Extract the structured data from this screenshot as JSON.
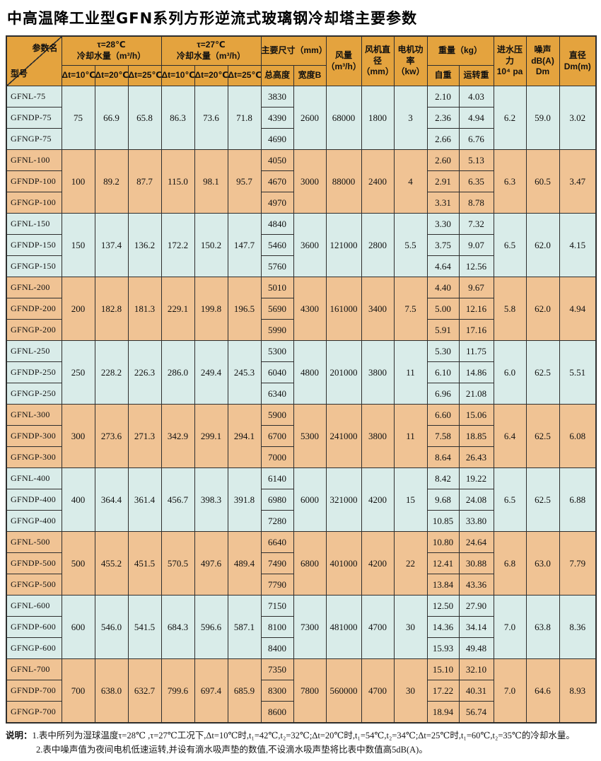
{
  "title": "中高温降工业型GFN系列方形逆流式玻璃钢冷却塔主要参数",
  "colors": {
    "header_bg": "#E4A33E",
    "row_blue": "#D9ECE9",
    "row_tan": "#F0C394",
    "border": "#2E2E2E"
  },
  "table": {
    "header": {
      "corner": {
        "top": "参数名",
        "bottom": "型号"
      },
      "flow28_title": "τ=28℃\n冷却水量（m³/h）",
      "flow27_title": "τ=27℃\n冷却水量（m³/h）",
      "dt_labels": [
        "Δt=10℃",
        "Δt=20℃",
        "Δt=25℃"
      ],
      "dims_title": "主要尺寸（mm）",
      "dims_height": "总高度",
      "dims_width": "宽度B",
      "air_volume": "风量\n（m³/h）",
      "fan_diameter": "风机直径\n（mm）",
      "motor_power": "电机功率\n（kw）",
      "weight_title": "重量（kg）",
      "weight_self": "自重",
      "weight_run": "运转重",
      "water_pressure": "进水压力\n10⁴ pa",
      "noise": "噪声\ndB(A) Dm",
      "diameter": "直径\nDm(m)"
    },
    "groups": [
      {
        "color": "blue",
        "models": [
          "GFNL-75",
          "GFNDP-75",
          "GFNGP-75"
        ],
        "flow28": [
          "75",
          "66.9",
          "65.8"
        ],
        "flow27": [
          "86.3",
          "73.6",
          "71.8"
        ],
        "heights": [
          "3830",
          "4390",
          "4690"
        ],
        "width_b": "2600",
        "air_volume": "68000",
        "fan_diameter": "1800",
        "motor_power": "3",
        "self_weights": [
          "2.10",
          "2.36",
          "2.66"
        ],
        "run_weights": [
          "4.03",
          "4.94",
          "6.76"
        ],
        "water_pressure": "6.2",
        "noise": "59.0",
        "diameter": "3.02"
      },
      {
        "color": "tan",
        "models": [
          "GFNL-100",
          "GFNDP-100",
          "GFNGP-100"
        ],
        "flow28": [
          "100",
          "89.2",
          "87.7"
        ],
        "flow27": [
          "115.0",
          "98.1",
          "95.7"
        ],
        "heights": [
          "4050",
          "4670",
          "4970"
        ],
        "width_b": "3000",
        "air_volume": "88000",
        "fan_diameter": "2400",
        "motor_power": "4",
        "self_weights": [
          "2.60",
          "2.91",
          "3.31"
        ],
        "run_weights": [
          "5.13",
          "6.35",
          "8.78"
        ],
        "water_pressure": "6.3",
        "noise": "60.5",
        "diameter": "3.47"
      },
      {
        "color": "blue",
        "models": [
          "GFNL-150",
          "GFNDP-150",
          "GFNGP-150"
        ],
        "flow28": [
          "150",
          "137.4",
          "136.2"
        ],
        "flow27": [
          "172.2",
          "150.2",
          "147.7"
        ],
        "heights": [
          "4840",
          "5460",
          "5760"
        ],
        "width_b": "3600",
        "air_volume": "121000",
        "fan_diameter": "2800",
        "motor_power": "5.5",
        "self_weights": [
          "3.30",
          "3.75",
          "4.64"
        ],
        "run_weights": [
          "7.32",
          "9.07",
          "12.56"
        ],
        "water_pressure": "6.5",
        "noise": "62.0",
        "diameter": "4.15"
      },
      {
        "color": "tan",
        "models": [
          "GFNL-200",
          "GFNDP-200",
          "GFNGP-200"
        ],
        "flow28": [
          "200",
          "182.8",
          "181.3"
        ],
        "flow27": [
          "229.1",
          "199.8",
          "196.5"
        ],
        "heights": [
          "5010",
          "5690",
          "5990"
        ],
        "width_b": "4300",
        "air_volume": "161000",
        "fan_diameter": "3400",
        "motor_power": "7.5",
        "self_weights": [
          "4.40",
          "5.00",
          "5.91"
        ],
        "run_weights": [
          "9.67",
          "12.16",
          "17.16"
        ],
        "water_pressure": "5.8",
        "noise": "62.0",
        "diameter": "4.94"
      },
      {
        "color": "blue",
        "models": [
          "GFNL-250",
          "GFNDP-250",
          "GFNGP-250"
        ],
        "flow28": [
          "250",
          "228.2",
          "226.3"
        ],
        "flow27": [
          "286.0",
          "249.4",
          "245.3"
        ],
        "heights": [
          "5300",
          "6040",
          "6340"
        ],
        "width_b": "4800",
        "air_volume": "201000",
        "fan_diameter": "3800",
        "motor_power": "11",
        "self_weights": [
          "5.30",
          "6.10",
          "6.96"
        ],
        "run_weights": [
          "11.75",
          "14.86",
          "21.08"
        ],
        "water_pressure": "6.0",
        "noise": "62.5",
        "diameter": "5.51"
      },
      {
        "color": "tan",
        "models": [
          "GFNL-300",
          "GFNDP-300",
          "GFNGP-300"
        ],
        "flow28": [
          "300",
          "273.6",
          "271.3"
        ],
        "flow27": [
          "342.9",
          "299.1",
          "294.1"
        ],
        "heights": [
          "5900",
          "6700",
          "7000"
        ],
        "width_b": "5300",
        "air_volume": "241000",
        "fan_diameter": "3800",
        "motor_power": "11",
        "self_weights": [
          "6.60",
          "7.58",
          "8.64"
        ],
        "run_weights": [
          "15.06",
          "18.85",
          "26.43"
        ],
        "water_pressure": "6.4",
        "noise": "62.5",
        "diameter": "6.08"
      },
      {
        "color": "blue",
        "models": [
          "GFNL-400",
          "GFNDP-400",
          "GFNGP-400"
        ],
        "flow28": [
          "400",
          "364.4",
          "361.4"
        ],
        "flow27": [
          "456.7",
          "398.3",
          "391.8"
        ],
        "heights": [
          "6140",
          "6980",
          "7280"
        ],
        "width_b": "6000",
        "air_volume": "321000",
        "fan_diameter": "4200",
        "motor_power": "15",
        "self_weights": [
          "8.42",
          "9.68",
          "10.85"
        ],
        "run_weights": [
          "19.22",
          "24.08",
          "33.80"
        ],
        "water_pressure": "6.5",
        "noise": "62.5",
        "diameter": "6.88"
      },
      {
        "color": "tan",
        "models": [
          "GFNL-500",
          "GFNDP-500",
          "GFNGP-500"
        ],
        "flow28": [
          "500",
          "455.2",
          "451.5"
        ],
        "flow27": [
          "570.5",
          "497.6",
          "489.4"
        ],
        "heights": [
          "6640",
          "7490",
          "7790"
        ],
        "width_b": "6800",
        "air_volume": "401000",
        "fan_diameter": "4200",
        "motor_power": "22",
        "self_weights": [
          "10.80",
          "12.41",
          "13.84"
        ],
        "run_weights": [
          "24.64",
          "30.88",
          "43.36"
        ],
        "water_pressure": "6.8",
        "noise": "63.0",
        "diameter": "7.79"
      },
      {
        "color": "blue",
        "models": [
          "GFNL-600",
          "GFNDP-600",
          "GFNGP-600"
        ],
        "flow28": [
          "600",
          "546.0",
          "541.5"
        ],
        "flow27": [
          "684.3",
          "596.6",
          "587.1"
        ],
        "heights": [
          "7150",
          "8100",
          "8400"
        ],
        "width_b": "7300",
        "air_volume": "481000",
        "fan_diameter": "4700",
        "motor_power": "30",
        "self_weights": [
          "12.50",
          "14.36",
          "15.93"
        ],
        "run_weights": [
          "27.90",
          "34.14",
          "49.48"
        ],
        "water_pressure": "7.0",
        "noise": "63.8",
        "diameter": "8.36"
      },
      {
        "color": "tan",
        "models": [
          "GFNL-700",
          "GFNDP-700",
          "GFNGP-700"
        ],
        "flow28": [
          "700",
          "638.0",
          "632.7"
        ],
        "flow27": [
          "799.6",
          "697.4",
          "685.9"
        ],
        "heights": [
          "7350",
          "8300",
          "8600"
        ],
        "width_b": "7800",
        "air_volume": "560000",
        "fan_diameter": "4700",
        "motor_power": "30",
        "self_weights": [
          "15.10",
          "17.22",
          "18.94"
        ],
        "run_weights": [
          "32.10",
          "40.31",
          "56.74"
        ],
        "water_pressure": "7.0",
        "noise": "64.6",
        "diameter": "8.93"
      }
    ]
  },
  "notes": {
    "label": "说明：",
    "line1": "1.表中所列为湿球温度τ=28℃ ,τ=27℃工况下,Δt=10℃时,t₁=42℃,t₂=32℃;Δt=20℃时,t₁=54℃,t₂=34℃;Δt=25℃时,t₁=60℃,t₂=35℃的冷却水量。",
    "line2": "2.表中噪声值为夜间电机低速运转,并设有滴水吸声垫的数值,不设滴水吸声垫将比表中数值高5dB(A)。"
  }
}
